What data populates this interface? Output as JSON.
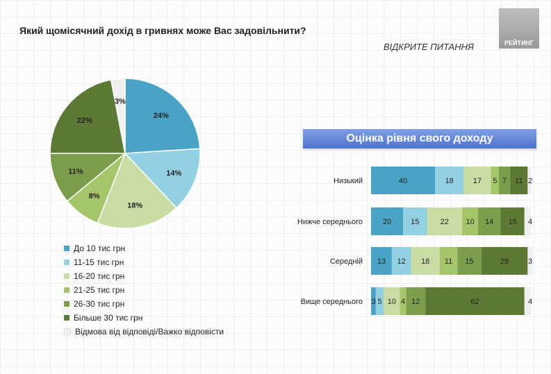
{
  "header": {
    "title": "Який щомісячний дохід в гривнях може Вас задовільнити?",
    "subtitle": "ВІДКРИТЕ ПИТАННЯ",
    "logo_text": "РЕЙТИНГ"
  },
  "chart_data": [
    {
      "type": "pie",
      "categories": [
        "До 10 тис грн",
        "11-15 тис грн",
        "16-20 тис грн",
        "21-25 тис грн",
        "26-30 тис грн",
        "Більше 30 тис грн",
        "Відмова від відповіді/Важко відповісти"
      ],
      "values": [
        24,
        14,
        18,
        8,
        11,
        22,
        3
      ],
      "labels": [
        "24%",
        "14%",
        "18%",
        "8%",
        "11%",
        "22%",
        "3%"
      ],
      "colors": [
        "#4aa3c4",
        "#93d0e2",
        "#c9dca4",
        "#a4c56a",
        "#7b9e4c",
        "#5c7a35",
        "#f0f0f0"
      ],
      "legend": "bottom"
    },
    {
      "type": "bar",
      "orientation": "horizontal",
      "stacked": true,
      "title": "Оцінка рівня свого доходу",
      "categories": [
        "Низький",
        "Нижче середнього",
        "Середній",
        "Вище середнього"
      ],
      "series": [
        {
          "values": [
            40,
            20,
            13,
            3
          ],
          "color": "#4aa3c4"
        },
        {
          "values": [
            18,
            15,
            12,
            5
          ],
          "color": "#93d0e2"
        },
        {
          "values": [
            17,
            22,
            18,
            10
          ],
          "color": "#c9dca4"
        },
        {
          "values": [
            5,
            10,
            11,
            4
          ],
          "color": "#a4c56a"
        },
        {
          "values": [
            7,
            14,
            15,
            12
          ],
          "color": "#7b9e4c"
        },
        {
          "values": [
            11,
            15,
            29,
            62
          ],
          "color": "#5c7a35"
        },
        {
          "values": [
            2,
            4,
            3,
            4
          ],
          "color": "#f0f0f0"
        }
      ]
    }
  ]
}
